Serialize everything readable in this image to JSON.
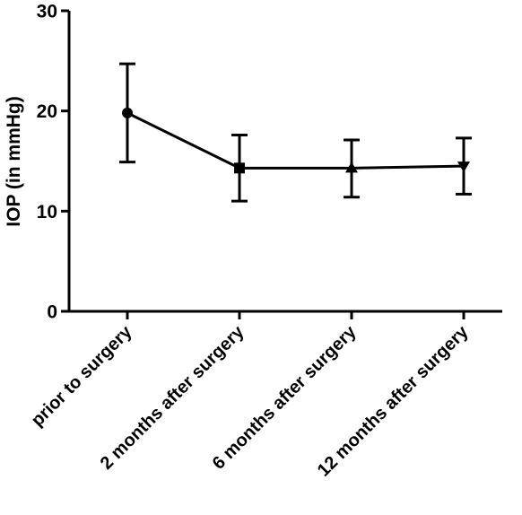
{
  "chart_data": {
    "type": "line",
    "title": "",
    "xlabel": "",
    "ylabel": "IOP (in mmHg)",
    "ylim": [
      0,
      30
    ],
    "yticks": [
      0,
      10,
      20,
      30
    ],
    "ytick_labels": [
      "0",
      "10",
      "20",
      "30"
    ],
    "categories": [
      "prior to surgery",
      "2 months after surgery",
      "6 months after surgery",
      "12 months after surgery"
    ],
    "grid": false,
    "legend": "none",
    "series": [
      {
        "values": [
          19.8,
          14.3,
          14.3,
          14.5
        ],
        "error_upper": [
          24.7,
          17.6,
          17.1,
          17.3
        ],
        "error_lower": [
          14.9,
          11.0,
          11.4,
          11.7
        ],
        "markers": [
          "circle",
          "square",
          "triangle-up",
          "triangle-down"
        ],
        "color": "#000000"
      }
    ]
  }
}
